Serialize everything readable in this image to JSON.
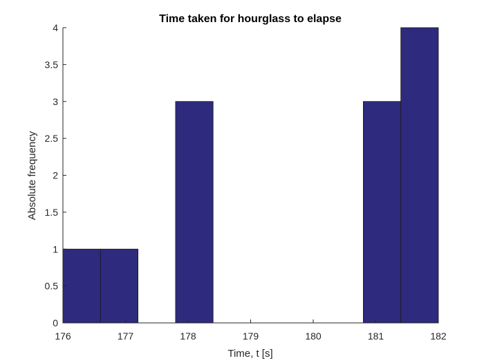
{
  "chart_data": {
    "type": "bar",
    "title": "Time taken for hourglass to elapse",
    "xlabel": "Time, t [s]",
    "ylabel": "Absolute frequency",
    "xlim": [
      176,
      182
    ],
    "ylim": [
      0,
      4
    ],
    "xticks": [
      176,
      177,
      178,
      179,
      180,
      181,
      182
    ],
    "yticks": [
      0,
      0.5,
      1,
      1.5,
      2,
      2.5,
      3,
      3.5,
      4
    ],
    "bins": [
      {
        "start": 176.0,
        "end": 176.6,
        "count": 1
      },
      {
        "start": 176.6,
        "end": 177.2,
        "count": 1
      },
      {
        "start": 177.2,
        "end": 177.8,
        "count": 0
      },
      {
        "start": 177.8,
        "end": 178.4,
        "count": 3
      },
      {
        "start": 178.4,
        "end": 179.0,
        "count": 0
      },
      {
        "start": 179.0,
        "end": 179.6,
        "count": 0
      },
      {
        "start": 179.6,
        "end": 180.2,
        "count": 0
      },
      {
        "start": 180.2,
        "end": 180.8,
        "count": 0
      },
      {
        "start": 180.8,
        "end": 181.4,
        "count": 3
      },
      {
        "start": 181.4,
        "end": 182.0,
        "count": 4
      }
    ],
    "bar_color": "#2e2a7d",
    "edge_color": "#1a1a1a",
    "grid": false
  }
}
